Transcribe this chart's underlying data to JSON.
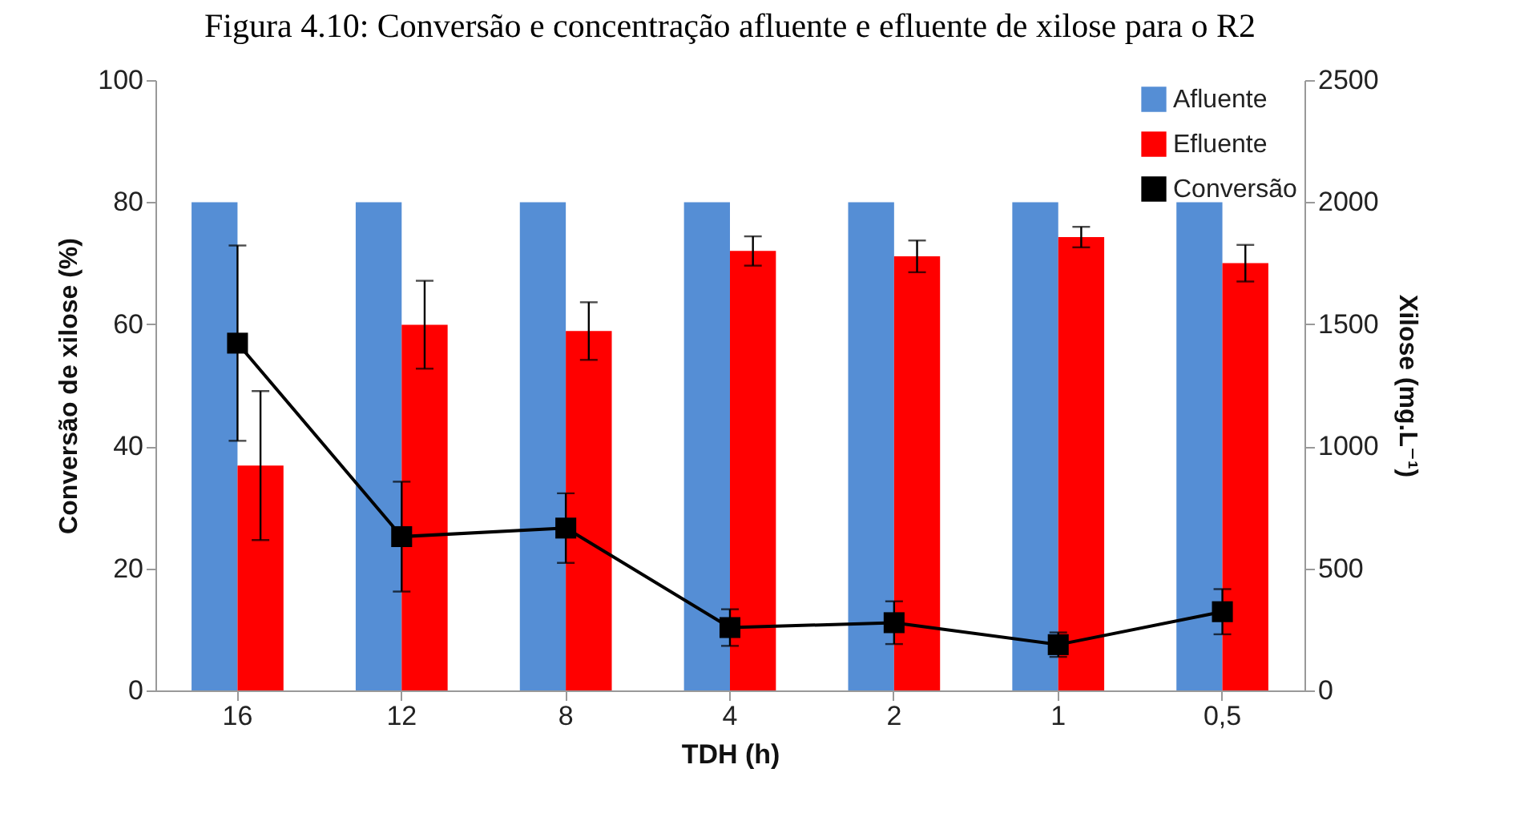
{
  "chart_data": {
    "type": "bar",
    "title": "Figura 4.10: Conversão e concentração afluente e efluente de xilose para o R2",
    "xlabel": "TDH (h)",
    "ylabel": "Conversão de xilose (%)",
    "y2label": "Xilose (mg.L⁻¹)",
    "categories": [
      "16",
      "12",
      "8",
      "4",
      "2",
      "1",
      "0,5"
    ],
    "series": [
      {
        "name": "Afluente",
        "axis": "y2",
        "color": "#558ed5",
        "values": [
          2000,
          2000,
          2000,
          2000,
          2000,
          2000,
          2000
        ]
      },
      {
        "name": "Efluente",
        "axis": "y2",
        "color": "#ff0000",
        "values": [
          921,
          1498,
          1472,
          1800,
          1778,
          1857,
          1750
        ],
        "errors": [
          305,
          180,
          118,
          60,
          65,
          42,
          75
        ]
      },
      {
        "name": "Conversão",
        "type": "line",
        "color": "#000000",
        "values": [
          56.9,
          25.2,
          26.6,
          10.3,
          11.1,
          7.5,
          12.9
        ],
        "errors": [
          16,
          9,
          5.7,
          3,
          3.5,
          2,
          3.7
        ]
      }
    ],
    "ylim": [
      0,
      100
    ],
    "yticks": [
      0,
      20,
      40,
      60,
      80,
      100
    ],
    "y2lim": [
      0,
      2500
    ],
    "y2ticks": [
      0,
      500,
      1000,
      1500,
      2000,
      2500
    ],
    "marker": "square",
    "grid": false,
    "legend": "top right"
  }
}
